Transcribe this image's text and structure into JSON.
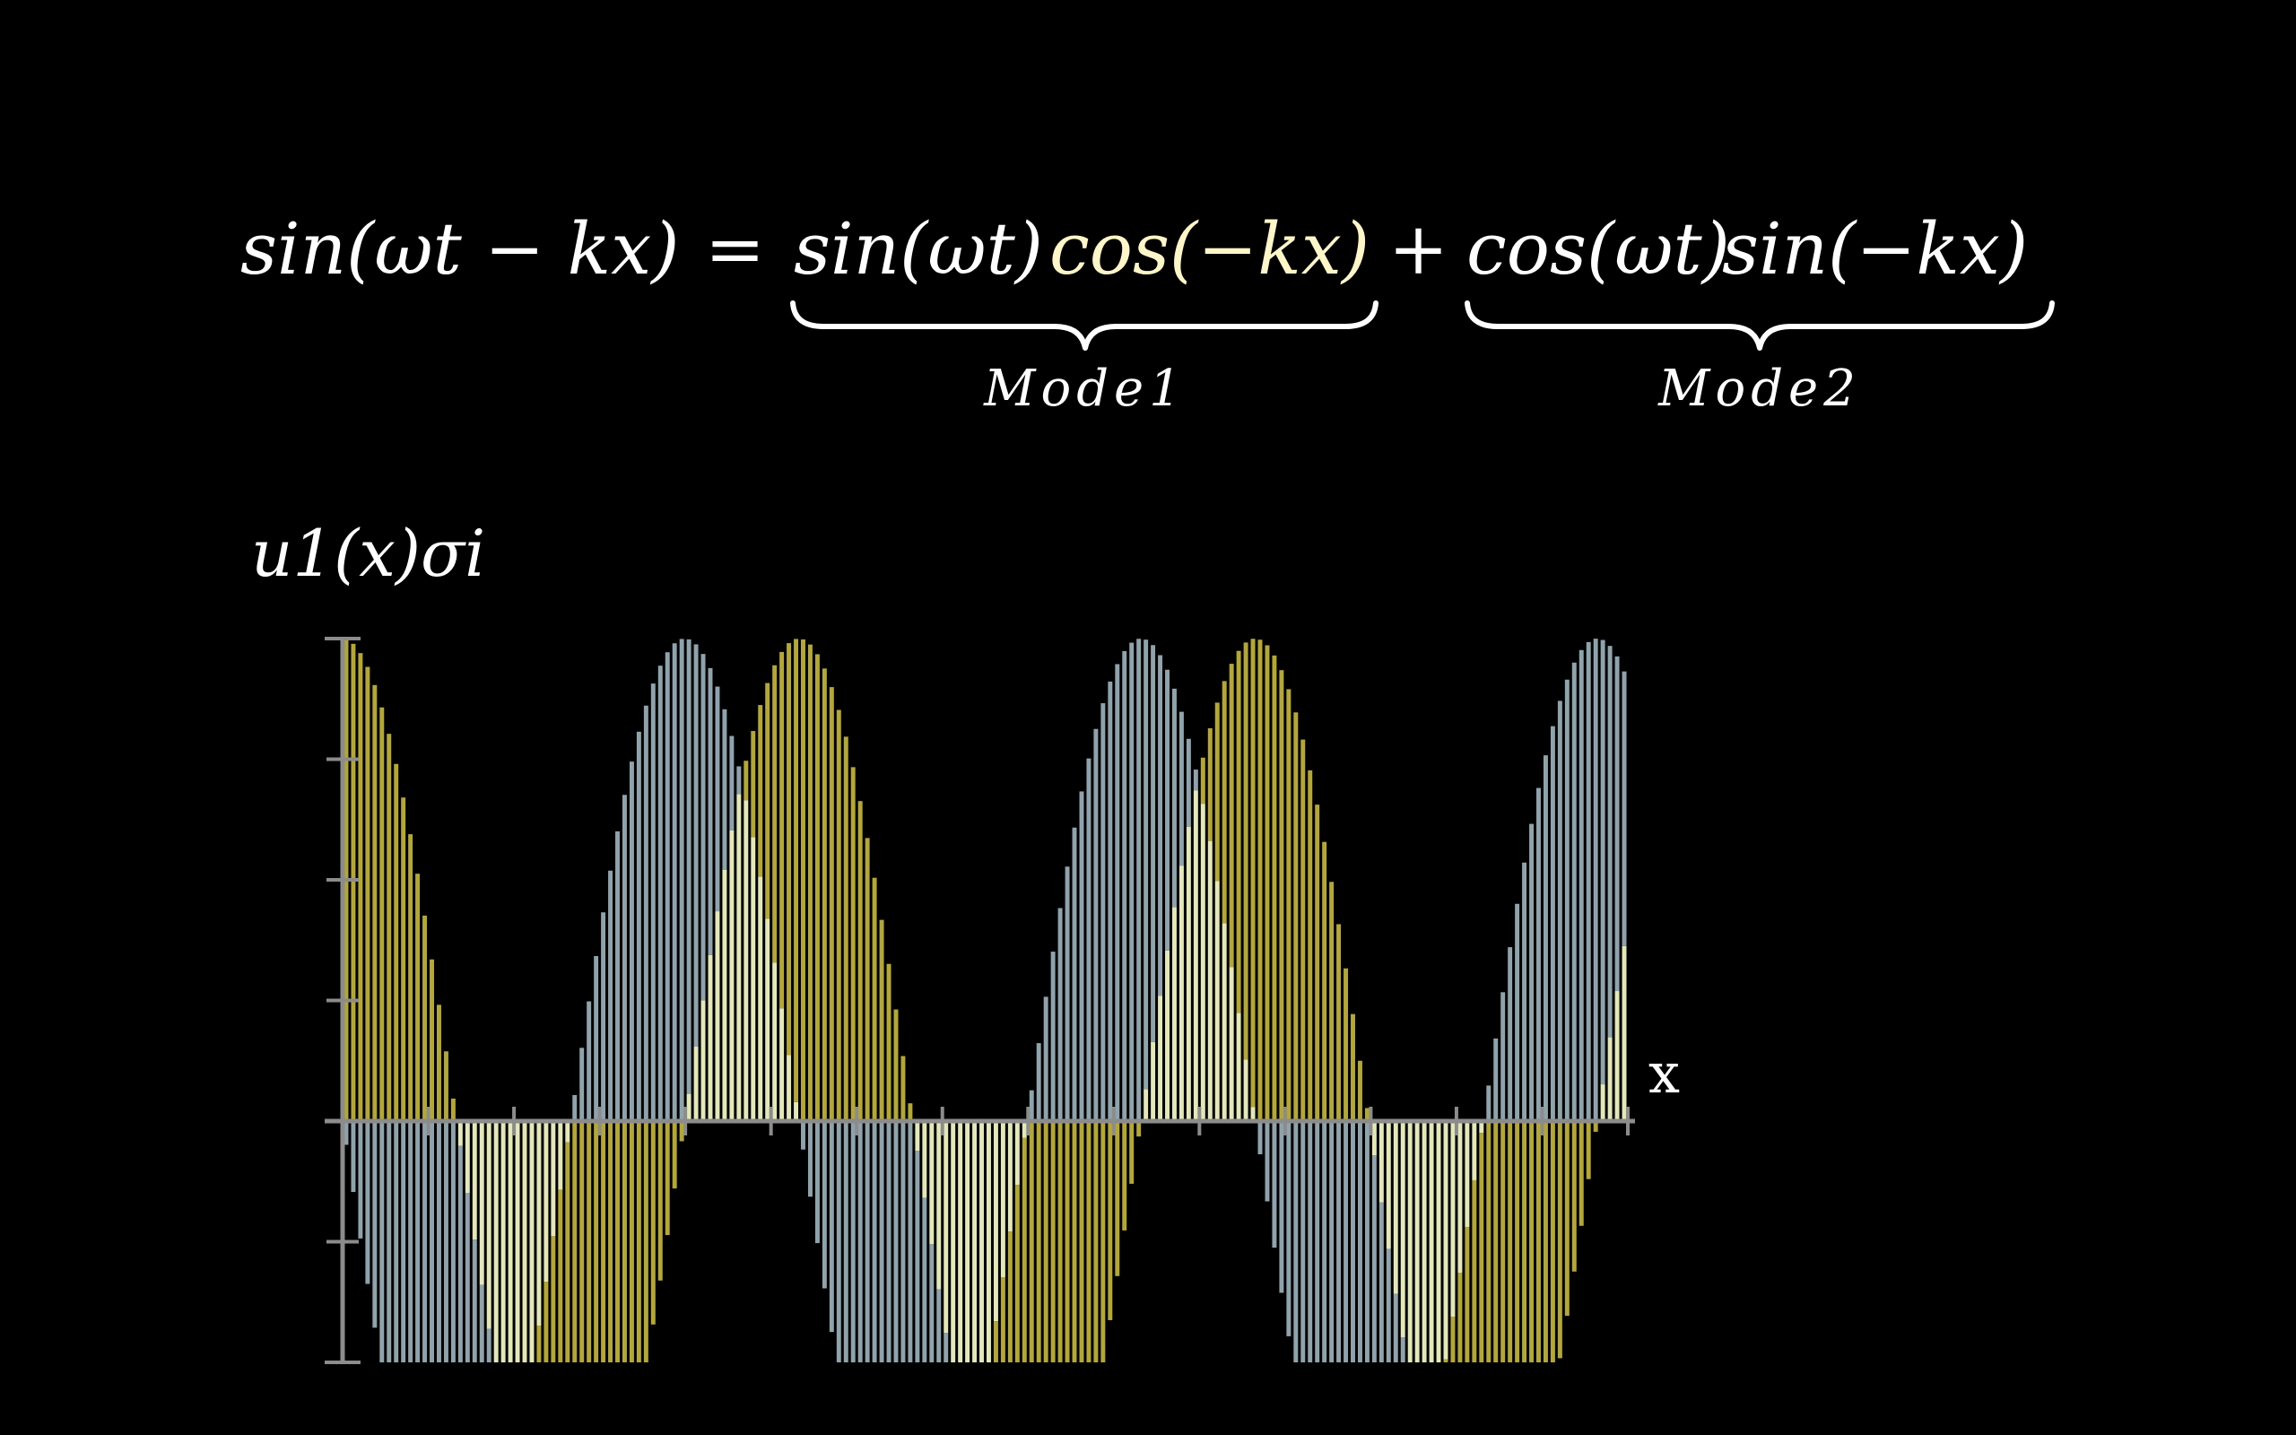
{
  "equation": {
    "lhs": "sin(ωt − kx)",
    "equals": "=",
    "term1_first": "sin(ωt)",
    "term1_second": "cos(−kx)",
    "plus": "+",
    "term2_first": "cos(ωt)",
    "term2_second": "sin(−kx)",
    "brace1_label": "Mode1",
    "brace2_label": "Mode2"
  },
  "colors": {
    "background": "#000000",
    "text": "#ffffff",
    "highlight_text": "#fff6c8",
    "axis": "#8c8c8c",
    "mode1_fill": "#b5a832",
    "mode2_fill": "#8fa3ad",
    "overlap_fill": "#e4e8b6"
  },
  "chart_data": {
    "type": "bar",
    "ylabel": "u1(x)σi",
    "xlabel": "x",
    "ylim": [
      -1,
      2
    ],
    "xlim": [
      0,
      1
    ],
    "y_tick_count": 6,
    "x_tick_count": 15,
    "bar_count": 180,
    "series": [
      {
        "name": "Mode1",
        "color": "#b5a832",
        "function": "2*cos(2*pi*x / 0.355)",
        "amplitude": 2,
        "period": 0.355,
        "phase": 0
      },
      {
        "name": "Mode2",
        "color": "#8fa3ad",
        "function": "-2*sin(2*pi*x / 0.355)",
        "amplitude": 2,
        "period": 0.355,
        "phase": 0
      }
    ]
  }
}
